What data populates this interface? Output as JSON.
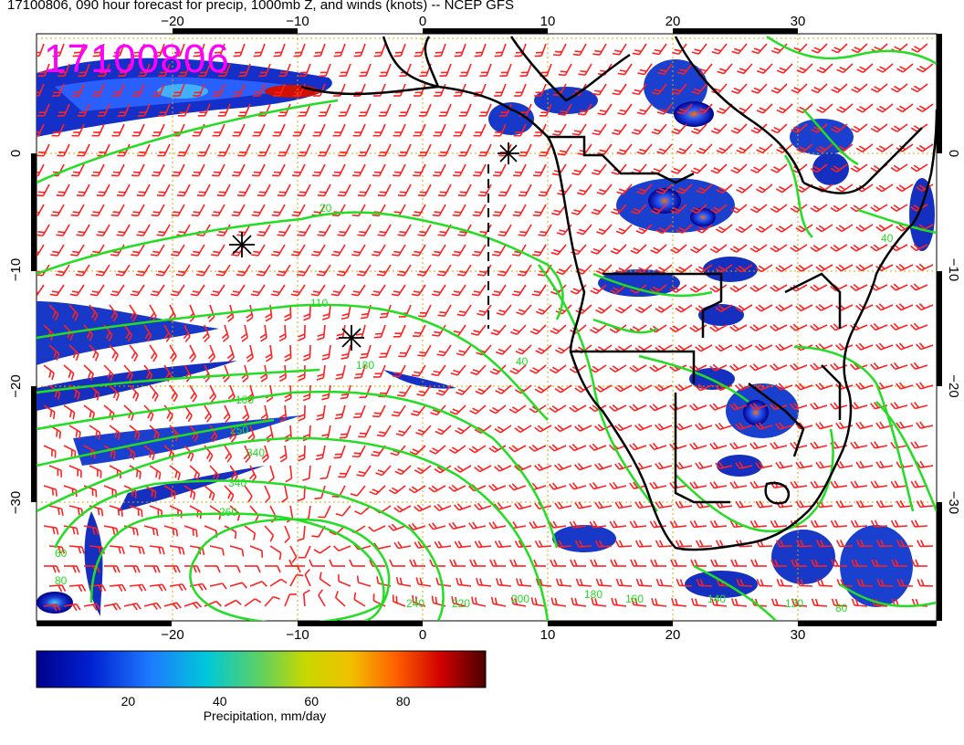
{
  "title": "17100806, 090 hour forecast for precip, 1000mb Z, and winds (knots) -- NCEP GFS",
  "date_stamp": "17100806",
  "map": {
    "region": "South Atlantic and southern Africa",
    "projection": "lat-lon",
    "lon_range": [
      -30,
      40
    ],
    "lat_range": [
      -40,
      10
    ],
    "lon_ticks": [
      "-20",
      "-10",
      "0",
      "10",
      "20",
      "30"
    ],
    "lat_ticks": [
      "0",
      "-10",
      "-20",
      "-30"
    ],
    "grid": "dotted gold",
    "contour_color": "#22dd22",
    "barb_color": "#ff2222",
    "coastline_color": "#000000",
    "precip_palette": [
      "#00008b",
      "#1e3cff",
      "#00c8c8",
      "#a0e000",
      "#f0d000",
      "#ff6000",
      "#c00000",
      "#500000"
    ],
    "contour_labels": [
      "20",
      "110",
      "180",
      "180",
      "250",
      "340",
      "340",
      "260",
      "240",
      "220",
      "200",
      "180",
      "160",
      "140",
      "120",
      "60",
      "80",
      "80",
      "40",
      "40"
    ]
  },
  "colorbar": {
    "label": "Precipitation, mm/day",
    "ticks": [
      "20",
      "40",
      "60",
      "80"
    ],
    "min": 0,
    "max": 98
  }
}
